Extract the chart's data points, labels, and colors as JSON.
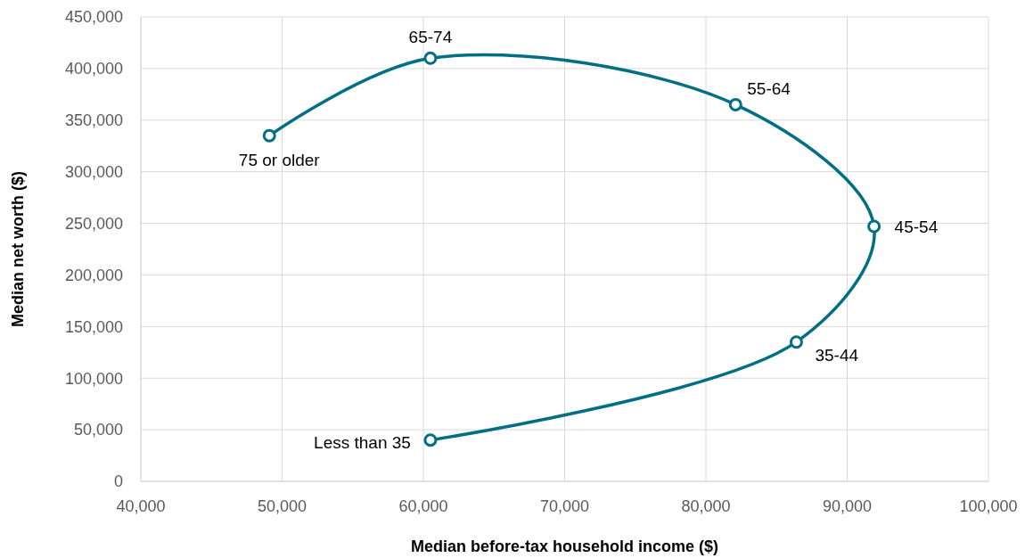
{
  "chart_data": {
    "type": "line",
    "xlabel": "Median before-tax household income ($)",
    "ylabel": "Median net worth ($)",
    "x": [
      60500,
      86400,
      91900,
      82100,
      60500,
      49100
    ],
    "series": [
      {
        "color": "#006f83",
        "values": [
          40000,
          135000,
          247000,
          365000,
          410000,
          335000
        ]
      }
    ],
    "xlim": [
      40000,
      100000
    ],
    "xticks": [
      {
        "value": 40000,
        "label": "40,000"
      },
      {
        "value": 50000,
        "label": "50,000"
      },
      {
        "value": 60000,
        "label": "60,000"
      },
      {
        "value": 70000,
        "label": "70,000"
      },
      {
        "value": 80000,
        "label": "80,000"
      },
      {
        "value": 90000,
        "label": "90,000"
      },
      {
        "value": 100000,
        "label": "100,000"
      }
    ],
    "ylim": [
      0,
      450000
    ],
    "yticks": [
      0,
      {
        "value": 50000,
        "label": "50,000"
      },
      {
        "value": 100000,
        "label": "100,000"
      },
      {
        "value": 150000,
        "label": "150,000"
      },
      {
        "value": 200000,
        "label": "200,000"
      },
      {
        "value": 250000,
        "label": "250,000"
      },
      {
        "value": 300000,
        "label": "300,000"
      },
      {
        "value": 350000,
        "label": "350,000"
      },
      {
        "value": 400000,
        "label": "400,000"
      },
      {
        "value": 450000,
        "label": "450,000"
      }
    ],
    "grid": true,
    "marker": "circle",
    "line_style": "solid",
    "annotations": [
      {
        "text": "Less than 35",
        "x": 60500,
        "y": 40000
      },
      {
        "text": "35-44",
        "x": 86400,
        "y": 135000
      },
      {
        "text": "45-54",
        "x": 91900,
        "y": 247000
      },
      {
        "text": "55-64",
        "x": 82100,
        "y": 365000
      },
      {
        "text": "65-74",
        "x": 60500,
        "y": 410000
      },
      {
        "text": "75 or older",
        "x": 49100,
        "y": 335000
      }
    ]
  }
}
